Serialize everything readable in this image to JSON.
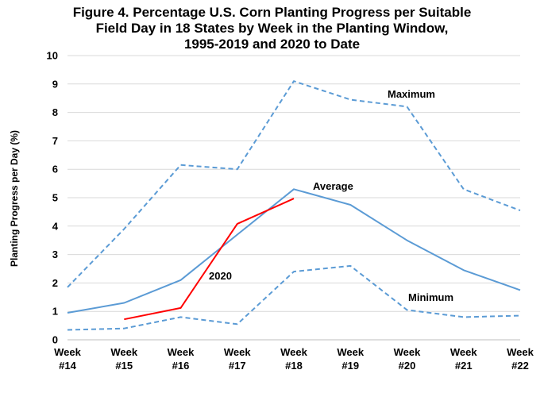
{
  "chart_data": {
    "type": "line",
    "title_lines": [
      "Figure 4. Percentage U.S. Corn Planting Progress per Suitable",
      "Field Day in 18 States by Week in the Planting Window,",
      "1995-2019 and 2020 to Date"
    ],
    "ylabel": "Planting Progress per Day (%)",
    "ylim": [
      0,
      10
    ],
    "yticks": [
      "0",
      "1",
      "2",
      "3",
      "4",
      "5",
      "6",
      "7",
      "8",
      "9",
      "10"
    ],
    "categories": [
      [
        "Week",
        "#14"
      ],
      [
        "Week",
        "#15"
      ],
      [
        "Week",
        "#16"
      ],
      [
        "Week",
        "#17"
      ],
      [
        "Week",
        "#18"
      ],
      [
        "Week",
        "#19"
      ],
      [
        "Week",
        "#20"
      ],
      [
        "Week",
        "#21"
      ],
      [
        "Week",
        "#22"
      ]
    ],
    "grid": true,
    "series": [
      {
        "name": "Maximum",
        "color": "#5B9BD5",
        "dash": true,
        "values": [
          1.85,
          3.9,
          6.15,
          6.0,
          9.1,
          8.45,
          8.2,
          5.3,
          4.55
        ]
      },
      {
        "name": "Average",
        "color": "#5B9BD5",
        "dash": false,
        "values": [
          0.95,
          1.3,
          2.1,
          3.7,
          5.3,
          4.75,
          3.5,
          2.45,
          1.75
        ]
      },
      {
        "name": "Minimum",
        "color": "#5B9BD5",
        "dash": true,
        "values": [
          0.35,
          0.4,
          0.8,
          0.55,
          2.4,
          2.6,
          1.05,
          0.8,
          0.85
        ]
      },
      {
        "name": "2020",
        "color": "#FF0000",
        "dash": false,
        "values": [
          null,
          0.72,
          1.12,
          4.08,
          4.97,
          null,
          null,
          null,
          null
        ]
      }
    ]
  }
}
